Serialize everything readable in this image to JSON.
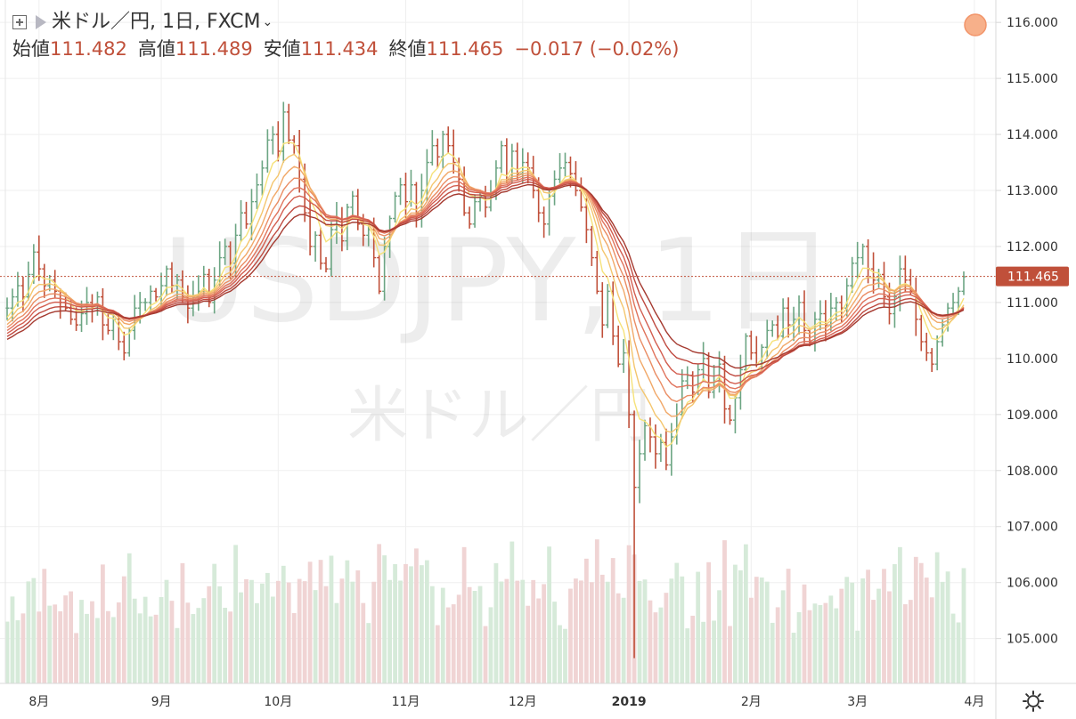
{
  "header": {
    "symbol": "米ドル／円, 1日, FXCM",
    "open_label": "始値",
    "open": "111.482",
    "high_label": "高値",
    "high": "111.489",
    "low_label": "安値",
    "low": "111.434",
    "close_label": "終値",
    "close": "111.465",
    "change": "−0.017 (−0.02%)"
  },
  "watermark": {
    "line1": "USDJPY, 1日",
    "line2": "米ドル／円"
  },
  "last_price_label": "111.465",
  "colors": {
    "up": "#6ca583",
    "down": "#c0503a",
    "vol_up": "#d6ead9",
    "vol_down": "#f0d4d4",
    "ma_lines": [
      "#f6e27a",
      "#f4c66e",
      "#f1a868",
      "#ea8d64",
      "#e0735c",
      "#d35e50",
      "#bf4a40",
      "#a53a30"
    ],
    "price_tag": "#c0503a"
  },
  "chart_data": {
    "type": "candlestick",
    "ylim": [
      104.2,
      116.4
    ],
    "y_ticks": [
      "116.000",
      "115.000",
      "114.000",
      "113.000",
      "112.000",
      "111.000",
      "110.000",
      "109.000",
      "108.000",
      "107.000",
      "106.000",
      "105.000"
    ],
    "x_labels": [
      {
        "label": "8月",
        "bar": 6
      },
      {
        "label": "9月",
        "bar": 29
      },
      {
        "label": "10月",
        "bar": 51
      },
      {
        "label": "11月",
        "bar": 75
      },
      {
        "label": "12月",
        "bar": 97
      },
      {
        "label": "2019",
        "bar": 117
      },
      {
        "label": "2月",
        "bar": 140
      },
      {
        "label": "3月",
        "bar": 160
      },
      {
        "label": "4月",
        "bar": 182
      }
    ],
    "closes": [
      110.9,
      111.1,
      111.3,
      111.1,
      111.5,
      111.9,
      111.6,
      111.3,
      111.4,
      111.2,
      111.0,
      110.9,
      110.7,
      110.6,
      110.8,
      111.0,
      110.9,
      111.1,
      110.6,
      110.5,
      110.7,
      110.3,
      110.1,
      110.5,
      110.9,
      111.0,
      111.0,
      111.2,
      111.1,
      111.3,
      111.6,
      111.3,
      111.4,
      111.1,
      110.9,
      111.1,
      111.2,
      111.5,
      111.0,
      111.4,
      111.8,
      112.0,
      111.7,
      112.2,
      112.6,
      112.4,
      112.8,
      113.1,
      113.4,
      113.9,
      114.0,
      113.7,
      114.4,
      113.9,
      113.8,
      113.2,
      112.6,
      112.0,
      112.2,
      111.7,
      111.6,
      112.3,
      112.5,
      112.1,
      112.7,
      112.9,
      112.4,
      112.2,
      112.3,
      111.8,
      111.2,
      112.0,
      112.5,
      112.9,
      113.1,
      112.8,
      113.1,
      112.6,
      113.0,
      113.5,
      113.8,
      113.6,
      114.0,
      113.8,
      113.5,
      113.2,
      112.6,
      112.4,
      112.8,
      112.9,
      112.7,
      112.9,
      113.4,
      113.8,
      113.2,
      113.7,
      113.3,
      113.5,
      113.4,
      113.0,
      112.6,
      112.4,
      112.9,
      113.2,
      113.4,
      113.5,
      113.3,
      113.0,
      112.7,
      112.3,
      111.8,
      111.2,
      110.6,
      111.2,
      110.4,
      109.9,
      110.1,
      109.0,
      107.7,
      108.3,
      108.8,
      108.6,
      108.3,
      108.5,
      108.1,
      108.6,
      109.0,
      109.6,
      109.7,
      109.4,
      109.8,
      110.0,
      109.4,
      109.6,
      109.9,
      109.1,
      108.9,
      109.3,
      109.8,
      110.4,
      110.1,
      109.9,
      110.2,
      110.5,
      110.6,
      110.4,
      110.9,
      110.6,
      110.7,
      111.0,
      110.5,
      110.3,
      110.7,
      110.8,
      110.6,
      110.9,
      111.0,
      110.9,
      111.3,
      111.7,
      111.8,
      112.0,
      111.6,
      111.4,
      111.5,
      111.1,
      110.8,
      111.1,
      111.6,
      111.4,
      111.2,
      110.7,
      110.3,
      110.1,
      109.9,
      110.3,
      110.6,
      110.9,
      111.0,
      111.2,
      111.46
    ],
    "series": [
      {
        "type": "ema",
        "period": 5
      },
      {
        "type": "ema",
        "period": 8
      },
      {
        "type": "ema",
        "period": 11
      },
      {
        "type": "ema",
        "period": 14
      },
      {
        "type": "ema",
        "period": 17
      },
      {
        "type": "ema",
        "period": 20
      },
      {
        "type": "ema",
        "period": 24
      },
      {
        "type": "ema",
        "period": 28
      }
    ],
    "title": "",
    "xlabel": "",
    "ylabel": ""
  }
}
